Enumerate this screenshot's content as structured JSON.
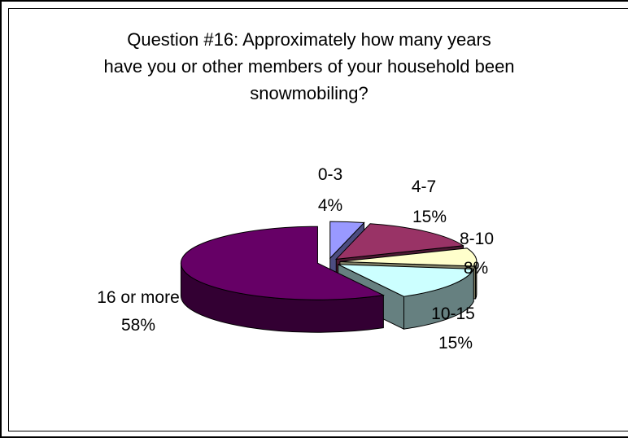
{
  "chart_data": {
    "type": "pie",
    "style": "3d-exploded",
    "title_lines": [
      "Question #16:  Approximately how many years",
      "have you or other members of your household been",
      "snowmobiling?"
    ],
    "slices": [
      {
        "label": "0-3",
        "value": 4,
        "value_label": "4%",
        "top_color": "#9999ff",
        "side_color": "#4c4c80"
      },
      {
        "label": "4-7",
        "value": 15,
        "value_label": "15%",
        "top_color": "#993366",
        "side_color": "#4c1933"
      },
      {
        "label": "8-10",
        "value": 8,
        "value_label": "8%",
        "top_color": "#ffffcc",
        "side_color": "#808066"
      },
      {
        "label": "10-15",
        "value": 15,
        "value_label": "15%",
        "top_color": "#ccffff",
        "side_color": "#668080"
      },
      {
        "label": "16 or more",
        "value": 58,
        "value_label": "58%",
        "top_color": "#660066",
        "side_color": "#330033"
      }
    ]
  }
}
